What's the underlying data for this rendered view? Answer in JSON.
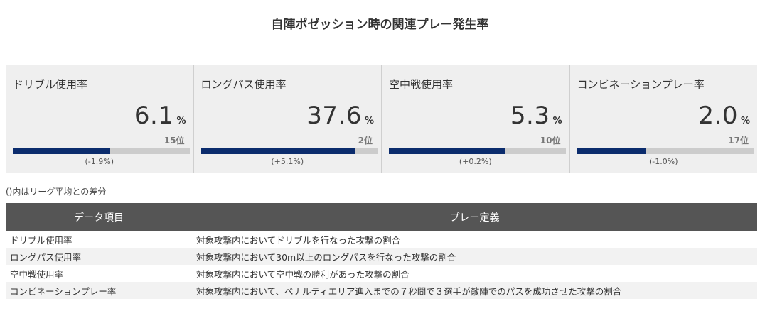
{
  "title": "自陣ポゼッション時の関連プレー発生率",
  "stats": [
    {
      "label": "ドリブル使用率",
      "value": "6.1",
      "unit": "%",
      "rank": "15位",
      "diff": "(-1.9%)",
      "bar_percent": 55
    },
    {
      "label": "ロングパス使用率",
      "value": "37.6",
      "unit": "%",
      "rank": "2位",
      "diff": "(+5.1%)",
      "bar_percent": 87
    },
    {
      "label": "空中戦使用率",
      "value": "5.3",
      "unit": "%",
      "rank": "10位",
      "diff": "(+0.2%)",
      "bar_percent": 66
    },
    {
      "label": "コンビネーションプレー率",
      "value": "2.0",
      "unit": "%",
      "rank": "17位",
      "diff": "(-1.0%)",
      "bar_percent": 39
    }
  ],
  "note": "()内はリーグ平均との差分",
  "table": {
    "headers": [
      "データ項目",
      "プレー定義"
    ],
    "rows": [
      {
        "item": "ドリブル使用率",
        "definition": "対象攻撃内においてドリブルを行なった攻撃の割合"
      },
      {
        "item": "ロングパス使用率",
        "definition": "対象攻撃内において30m以上のロングパスを行なった攻撃の割合"
      },
      {
        "item": "空中戦使用率",
        "definition": "対象攻撃内において空中戦の勝利があった攻撃の割合"
      },
      {
        "item": "コンビネーションプレー率",
        "definition": "対象攻撃内において、ペナルティエリア進入までの７秒間で３選手が敵陣でのパスを成功させた攻撃の割合"
      }
    ]
  },
  "colors": {
    "bar_fill": "#0b2c6d",
    "bar_track": "#cccccc",
    "panel_bg": "#efefef",
    "table_header_bg": "#555555"
  }
}
